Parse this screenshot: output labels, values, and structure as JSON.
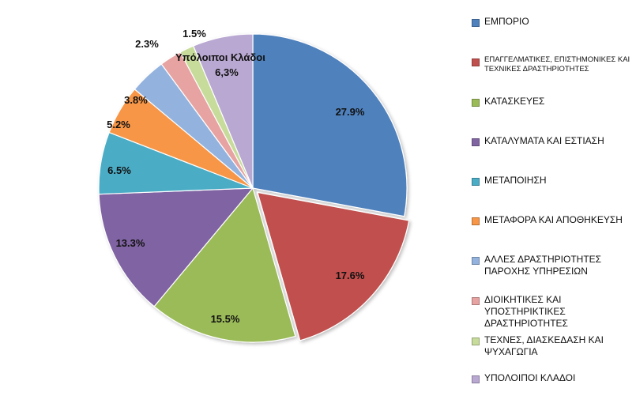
{
  "chart_data": {
    "type": "pie",
    "title": "",
    "slices": [
      {
        "label": "ΕΜΠΟΡΙΟ",
        "value": 27.9,
        "display": "27.9%",
        "color": "#4f81bd",
        "edge": "#2c5d96"
      },
      {
        "label": "ΕΠΑΓΓΕΛΜΑΤΙΚΕΣ, ΕΠΙΣΤΗΜΟΝΙΚΕΣ ΚΑΙ ΤΕΧΝΙΚΕΣ ΔΡΑΣΤΗΡΙΟΤΗΤΕΣ",
        "value": 17.6,
        "display": "17.6%",
        "color": "#c0504d",
        "edge": "#8f2d2a"
      },
      {
        "label": "ΚΑΤΑΣΚΕΥΕΣ",
        "value": 15.5,
        "display": "15.5%",
        "color": "#9bbb59",
        "edge": "#6d8a36"
      },
      {
        "label": "ΚΑΤΑΛΥΜΑΤΑ ΚΑΙ ΕΣΤΙΑΣΗ",
        "value": 13.3,
        "display": "13.3%",
        "color": "#8064a2",
        "edge": "#59427a"
      },
      {
        "label": "ΜΕΤΑΠΟΙΗΣΗ",
        "value": 6.5,
        "display": "6.5%",
        "color": "#4bacc6",
        "edge": "#25809a"
      },
      {
        "label": "ΜΕΤΑΦΟΡΑ ΚΑΙ ΑΠΟΘΗΚΕΥΣΗ",
        "value": 5.2,
        "display": "5.2%",
        "color": "#f79646",
        "edge": "#c56b1f"
      },
      {
        "label": "ΑΛΛΕΣ ΔΡΑΣΤΗΡΙΟΤΗΤΕΣ ΠΑΡΟΧΗΣ ΥΠΗΡΕΣΙΩΝ",
        "value": 3.8,
        "display": "3.8%",
        "color": "#93b3de",
        "edge": "#6788b5"
      },
      {
        "label": "ΔΙΟΙΚΗΤΙΚΕΣ ΚΑΙ ΥΠΟΣΤΗΡΙΚΤΙΚΕΣ ΔΡΑΣΤΗΡΙΟΤΗΤΕΣ",
        "value": 2.3,
        "display": "2.3%",
        "color": "#e6a3a1",
        "edge": "#b87371"
      },
      {
        "label": "ΤΕΧΝΕΣ, ΔΙΑΣΚΕΔΑΣΗ ΚΑΙ ΨΥΧΑΓΩΓΙΑ",
        "value": 1.5,
        "display": "1.5%",
        "color": "#c7dc9b",
        "edge": "#98ae6c"
      },
      {
        "label": "ΥΠΟΛΟΙΠΟΙ ΚΛΑΔΟΙ",
        "value": 6.3,
        "display": "6,3%",
        "color": "#b9a8d1",
        "edge": "#8a78a6"
      }
    ],
    "annotation": "Υπόλοιποι Κλάδοι",
    "legend_position": "right"
  }
}
